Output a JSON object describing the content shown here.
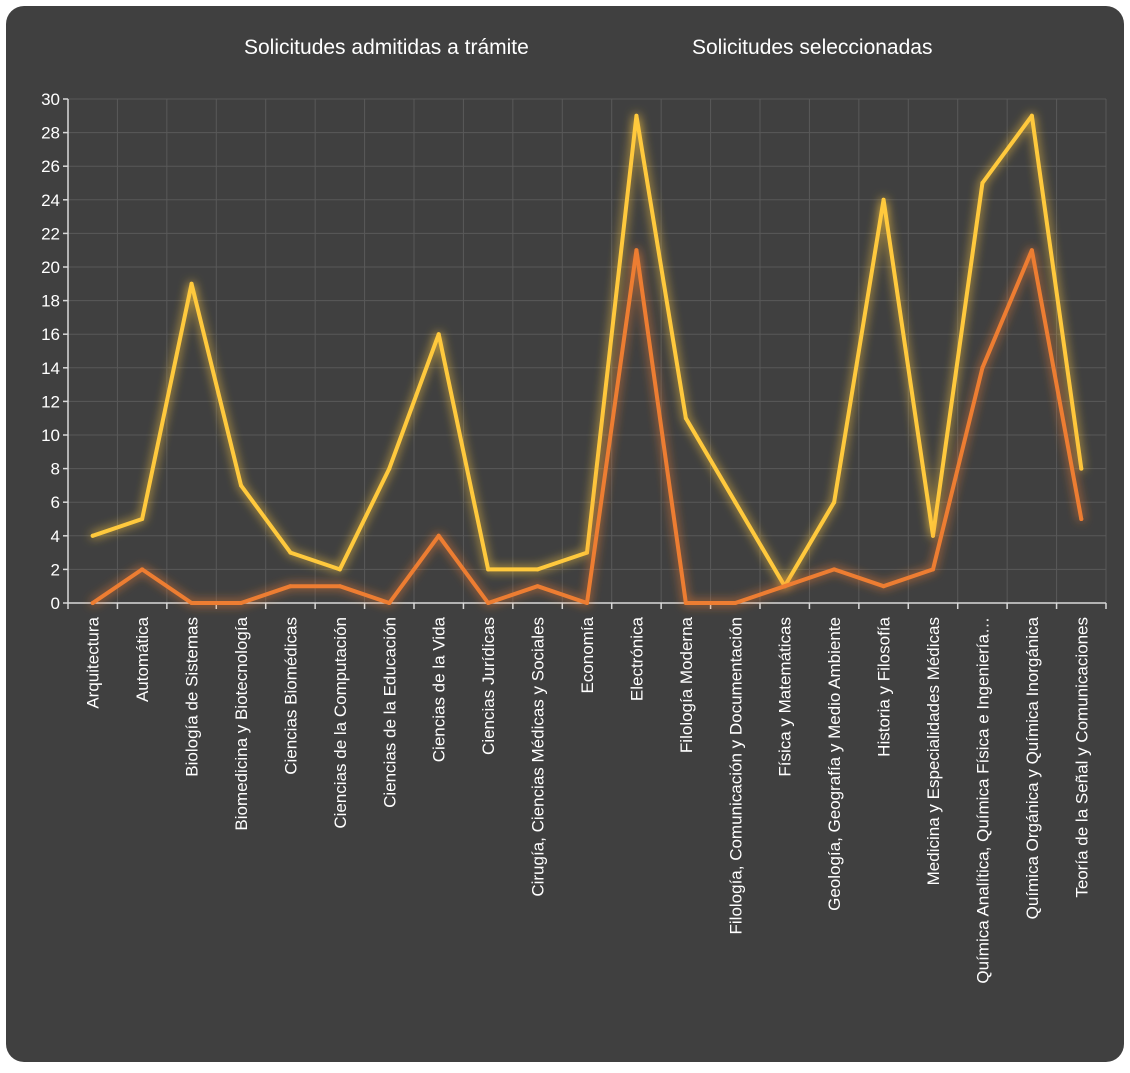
{
  "chart_data": {
    "type": "line",
    "title": "",
    "xlabel": "",
    "ylabel": "",
    "ylim": [
      0,
      30
    ],
    "ytick_step": 2,
    "yticks": [
      "0",
      "2",
      "4",
      "6",
      "8",
      "10",
      "12",
      "14",
      "16",
      "18",
      "20",
      "22",
      "24",
      "26",
      "28",
      "30"
    ],
    "grid": true,
    "legend_position": "top",
    "background_color": "#404040",
    "gridline_color": "#595959",
    "text_color": "#ffffff",
    "categories": [
      "Arquitectura",
      "Automática",
      "Biología de Sistemas",
      "Biomedicina y Biotecnología",
      "Ciencias Biomédicas",
      "Ciencias de la Computación",
      "Ciencias de la Educación",
      "Ciencias de la Vida",
      "Ciencias Jurídicas",
      "Cirugía, Ciencias Médicas y Sociales",
      "Economía",
      "Electrónica",
      "Filología Moderna",
      "Filología, Comunicación y Documentación",
      "Física y Matemáticas",
      "Geología, Geografía y Medio Ambiente",
      "Historia y Filosofía",
      "Medicina y Especialidades Médicas",
      "Química Analítica, Química Física e Ingeniería…",
      "Química Orgánica y Química Inorgánica",
      "Teoría de la Señal y Comunicaciones"
    ],
    "series": [
      {
        "name": "Solicitudes admitidas a trámite",
        "color": "#FFC93C",
        "values": [
          4,
          5,
          19,
          7,
          3,
          2,
          8,
          16,
          2,
          2,
          3,
          29,
          11,
          6,
          1,
          6,
          24,
          4,
          25,
          29,
          8
        ]
      },
      {
        "name": "Solicitudes seleccionadas",
        "color": "#ED7D31",
        "values": [
          0,
          2,
          0,
          0,
          1,
          1,
          0,
          4,
          0,
          1,
          0,
          21,
          0,
          0,
          1,
          2,
          1,
          2,
          14,
          21,
          5
        ]
      }
    ]
  }
}
